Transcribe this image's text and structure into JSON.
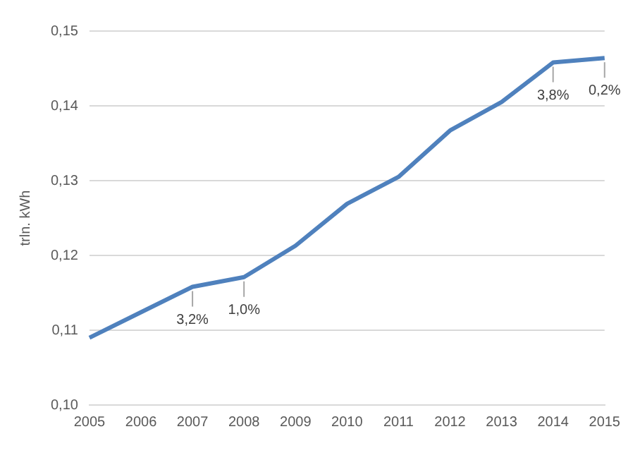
{
  "chart_data": {
    "type": "line",
    "ylabel": "trln. kWh",
    "categories": [
      "2005",
      "2006",
      "2007",
      "2008",
      "2009",
      "2010",
      "2011",
      "2012",
      "2013",
      "2014",
      "2015"
    ],
    "series": [
      {
        "color": "#4f81bd",
        "values": [
          0.109,
          0.1124,
          0.1158,
          0.1171,
          0.1213,
          0.1269,
          0.1305,
          0.1367,
          0.1405,
          0.1458,
          0.1464
        ]
      }
    ],
    "ylim": [
      0.1,
      0.15
    ],
    "yticks": [
      {
        "value": 0.1,
        "label": "0,10"
      },
      {
        "value": 0.11,
        "label": "0,11"
      },
      {
        "value": 0.12,
        "label": "0,12"
      },
      {
        "value": 0.13,
        "label": "0,13"
      },
      {
        "value": 0.14,
        "label": "0,14"
      },
      {
        "value": 0.15,
        "label": "0,15"
      }
    ],
    "grid": "y",
    "legend": false,
    "marker": "none",
    "line_style": "solid",
    "annotations": [
      {
        "text": "3,2%",
        "x": "2007",
        "y": 0.1158
      },
      {
        "text": "1,0%",
        "x": "2008",
        "y": 0.1171
      },
      {
        "text": "3,8%",
        "x": "2014",
        "y": 0.1458
      },
      {
        "text": "0,2%",
        "x": "2015",
        "y": 0.1464
      }
    ]
  }
}
